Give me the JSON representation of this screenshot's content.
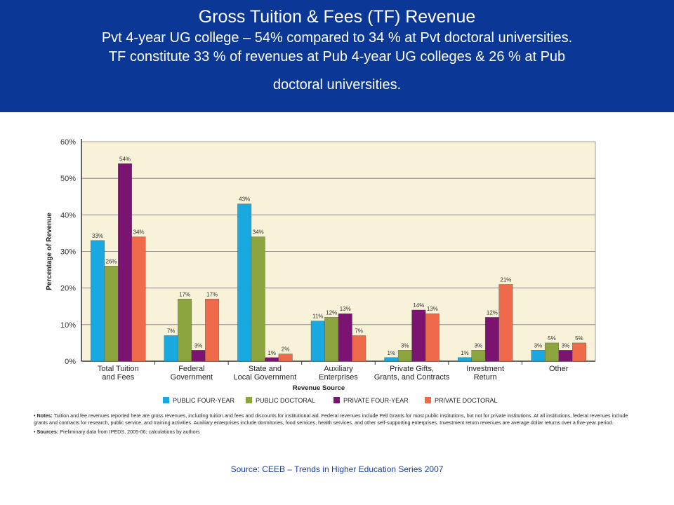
{
  "header": {
    "title": "Gross Tuition & Fees (TF) Revenue",
    "line1": "Pvt 4-year UG college – 54% compared to 34 % at Pvt  doctoral universities.",
    "line2": "TF constitute 33 % of revenues at Pub 4-year UG colleges & 26 % at Pub",
    "line3": "doctoral universities."
  },
  "chart_data": {
    "type": "bar",
    "xlabel": "Revenue Source",
    "ylabel": "Percentage of Revenue",
    "ylim": [
      0,
      60
    ],
    "yticks": [
      "0%",
      "10%",
      "20%",
      "30%",
      "40%",
      "50%",
      "60%"
    ],
    "grid": true,
    "legend_position": "bottom",
    "categories": [
      [
        "Total Tuition",
        "and Fees"
      ],
      [
        "Federal",
        "Government"
      ],
      [
        "State and",
        "Local Government"
      ],
      [
        "Auxiliary",
        "Enterprises"
      ],
      [
        "Private Gifts,",
        "Grants, and Contracts"
      ],
      [
        "Investment",
        "Return"
      ],
      [
        "Other"
      ]
    ],
    "series": [
      {
        "name": "PUBLIC FOUR-YEAR",
        "color": "#19a9e0",
        "values": [
          33,
          7,
          43,
          11,
          1,
          1,
          3
        ],
        "labels": [
          "33%",
          "7%",
          "43%",
          "11%",
          "1%",
          "1%",
          "3%"
        ]
      },
      {
        "name": "PUBLIC DOCTORAL",
        "color": "#8da53f",
        "values": [
          26,
          17,
          34,
          12,
          3,
          3,
          5
        ],
        "labels": [
          "26%",
          "17%",
          "34%",
          "12%",
          "3%",
          "3%",
          "5%"
        ]
      },
      {
        "name": "PRIVATE FOUR-YEAR",
        "color": "#7a1470",
        "values": [
          54,
          3,
          1,
          13,
          14,
          12,
          3
        ],
        "labels": [
          "54%",
          "3%",
          "1%",
          "13%",
          "14%",
          "12%",
          "3%"
        ]
      },
      {
        "name": "PRIVATE DOCTORAL",
        "color": "#ef6a4a",
        "values": [
          34,
          17,
          2,
          7,
          13,
          21,
          5
        ],
        "labels": [
          "34%",
          "17%",
          "2%",
          "7%",
          "13%",
          "21%",
          "5%"
        ]
      }
    ],
    "plot_background": "#f8f3d8"
  },
  "notes": {
    "notes_label": "Notes:",
    "notes_text": "Tuition and fee revenues reported here are gross revenues, including tuition and fees and discounts for institutional aid. Federal revenues include Pell Grants for most public institutions, but not for private institutions. At all institutions, federal revenues include grants and contracts for research, public service, and training activities. Auxiliary enterprises include dormitories, food services, health services, and other self-supporting enterprises. Investment return revenues are average dollar returns over a five-year period.",
    "sources_label": "Sources:",
    "sources_text": "Preliminary data from IPEDS, 2005-06; calculations by authors"
  },
  "source_line": "Source: CEEB – Trends in Higher Education Series  2007"
}
